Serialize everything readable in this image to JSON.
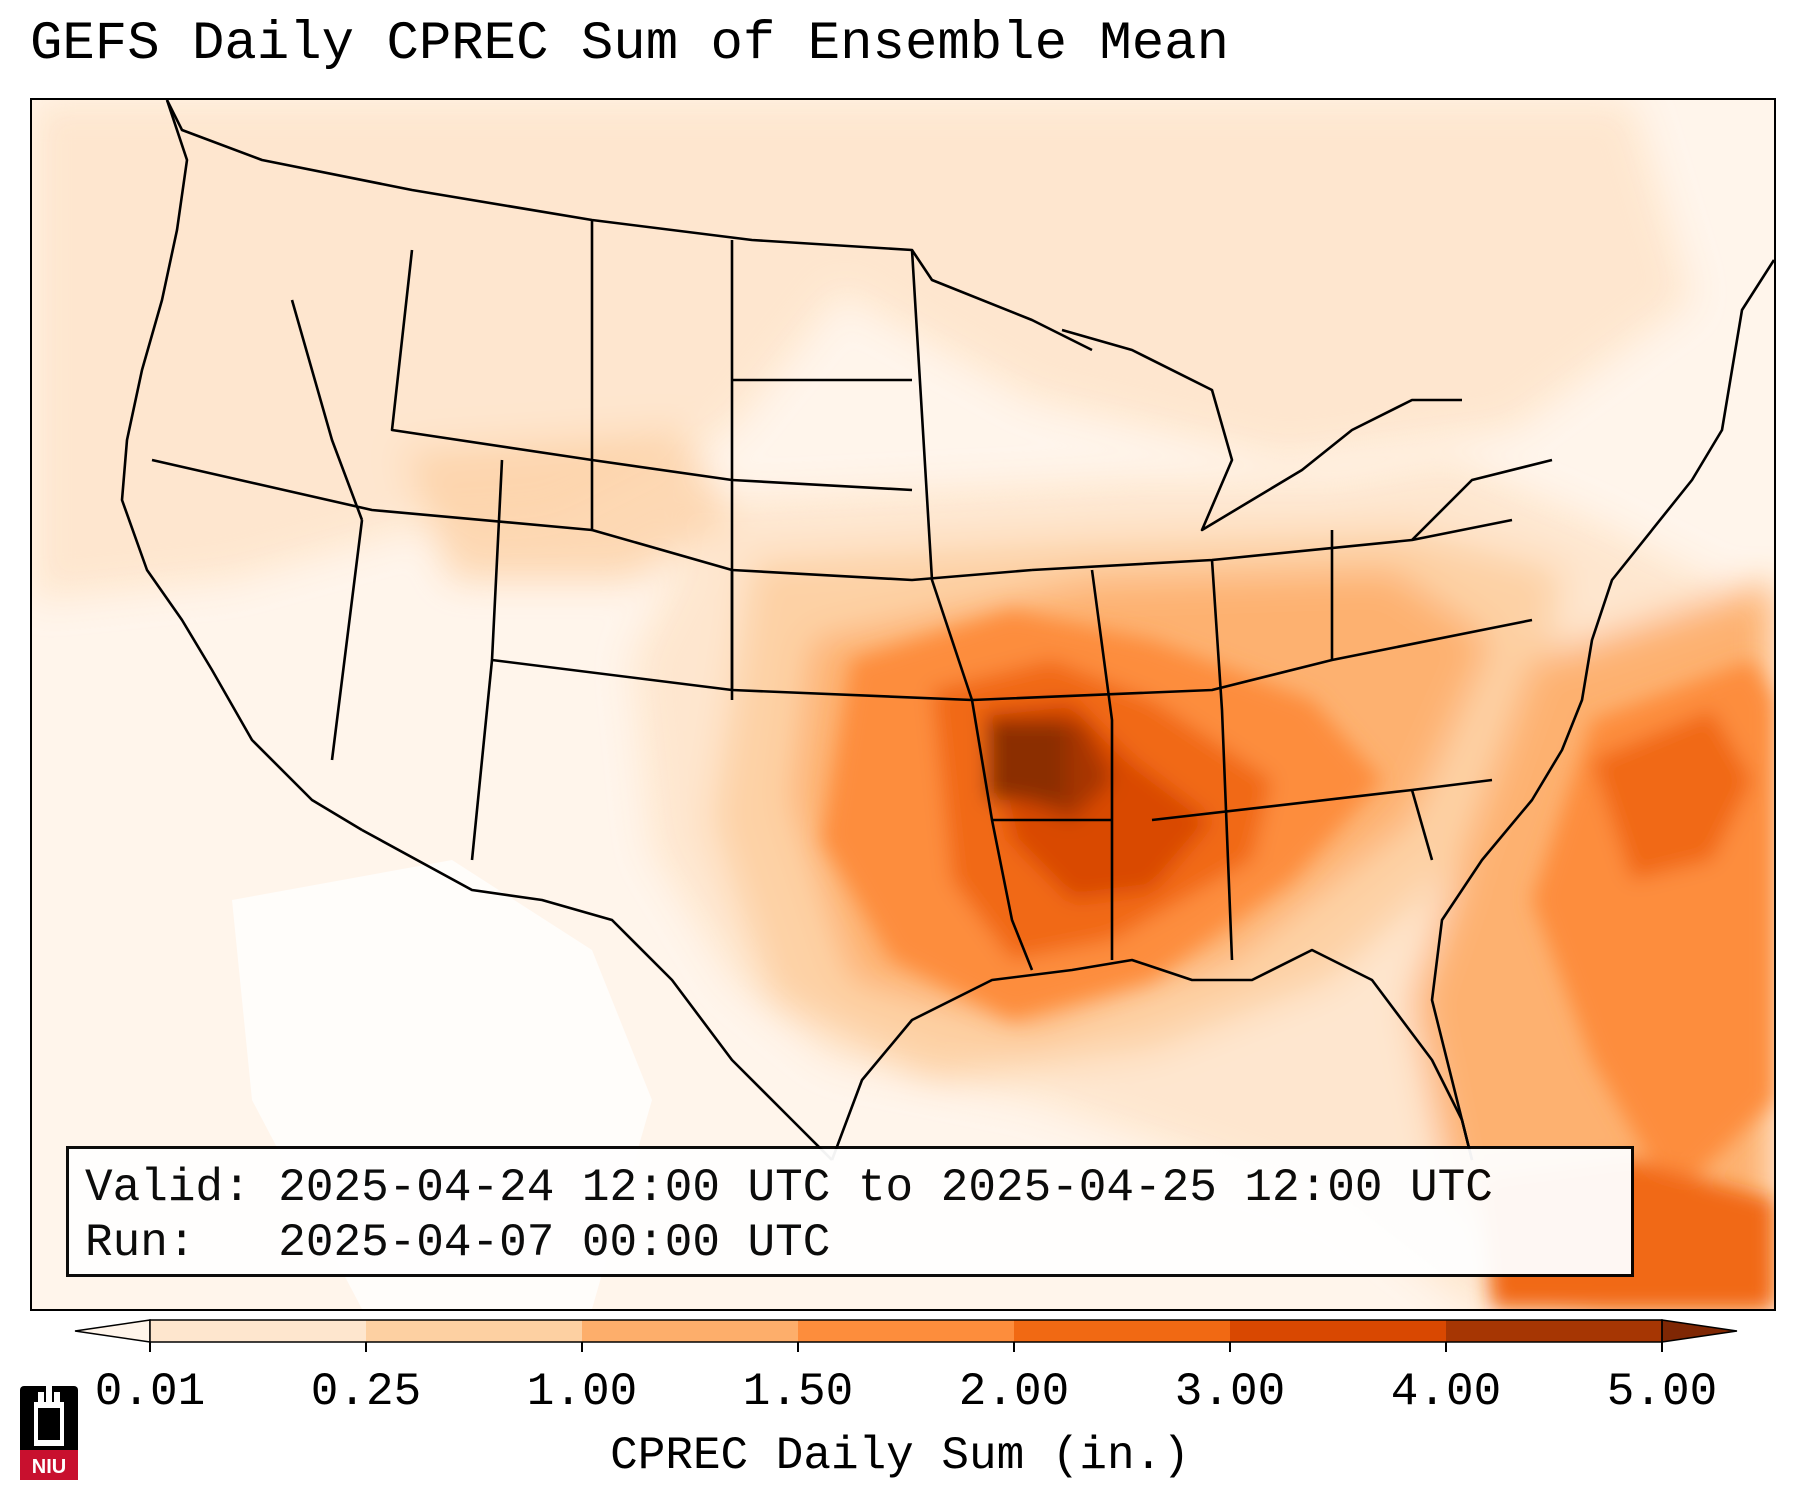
{
  "title": "GEFS Daily CPREC Sum of Ensemble Mean",
  "info": {
    "valid_label": "Valid:",
    "valid_value": "2025-04-24 12:00 UTC to 2025-04-25 12:00 UTC",
    "run_label": "Run:",
    "run_value": "2025-04-07 00:00 UTC"
  },
  "colorbar": {
    "label": "CPREC Daily Sum (in.)",
    "ticks": [
      "0.01",
      "0.25",
      "1.00",
      "1.50",
      "2.00",
      "3.00",
      "4.00",
      "5.00"
    ],
    "colors": [
      "#fee6ce",
      "#fdd0a2",
      "#fdae6b",
      "#fd8d3c",
      "#f16913",
      "#d94801",
      "#a63603"
    ],
    "under_color": "#fff5eb",
    "over_color": "#7f2704",
    "extend": "both"
  },
  "map": {
    "projection": "Lambert Conformal",
    "region": "Contiguous United States",
    "max_precip_area": "Missouri / Arkansas / Tennessee Valley",
    "boundaries": "states and coastlines"
  },
  "logo": {
    "text": "NIU",
    "icon": "niu-tower-logo",
    "colors": {
      "primary": "#c8102e",
      "secondary": "#000000"
    }
  }
}
